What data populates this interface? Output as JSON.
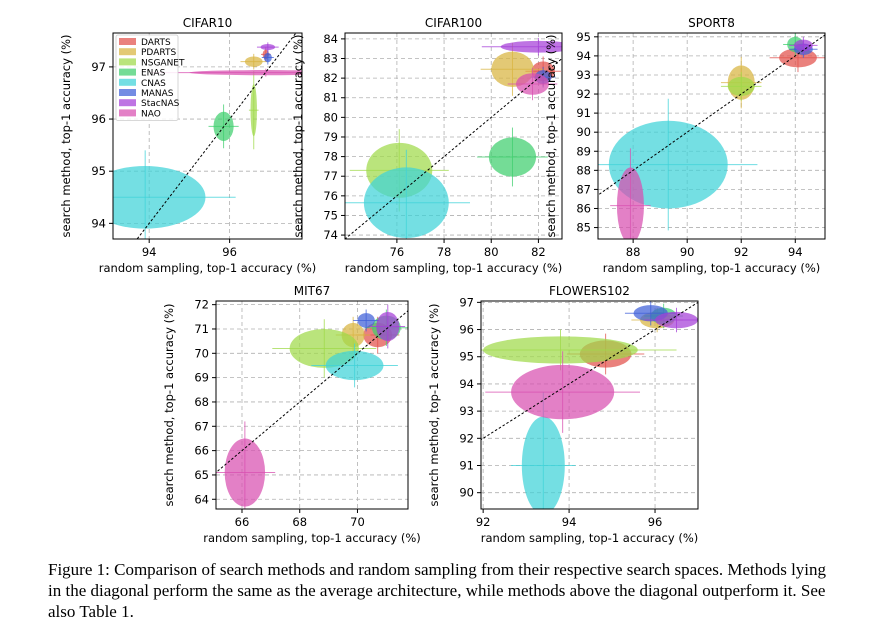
{
  "figure": {
    "caption": "Figure 1: Comparison of search methods and random sampling from their respective search spaces. Methods lying in the diagonal perform the same as the average architecture, while methods above the diagonal outperform it. See also Table 1."
  },
  "legend": [
    {
      "name": "DARTS",
      "color": "#e2504b"
    },
    {
      "name": "PDARTS",
      "color": "#d8b440"
    },
    {
      "name": "NSGANET",
      "color": "#9fd94a"
    },
    {
      "name": "ENAS",
      "color": "#3fcf6e"
    },
    {
      "name": "CNAS",
      "color": "#3fd2d8"
    },
    {
      "name": "MANAS",
      "color": "#3f5fd8"
    },
    {
      "name": "StacNAS",
      "color": "#a53fd8"
    },
    {
      "name": "NAO",
      "color": "#d84fb0"
    }
  ],
  "chart_data": [
    {
      "type": "scatter",
      "title": "CIFAR10",
      "xlabel": "random sampling, top-1 accuracy (%)",
      "ylabel": "search method, top-1 accuracy (%)",
      "xlim": [
        93.1,
        97.8
      ],
      "ylim": [
        93.7,
        97.65
      ],
      "xticks": [
        94,
        96
      ],
      "yticks": [
        94,
        95,
        96,
        97
      ],
      "points": [
        {
          "name": "DARTS",
          "x": 96.9,
          "y": 97.24,
          "xerr": 0.08,
          "yerr": 0.09
        },
        {
          "name": "PDARTS",
          "x": 96.6,
          "y": 97.1,
          "xerr": 0.22,
          "yerr": 0.1
        },
        {
          "name": "NSGANET",
          "x": 96.6,
          "y": 96.17,
          "xerr": 0.08,
          "yerr": 0.5
        },
        {
          "name": "ENAS",
          "x": 95.85,
          "y": 95.86,
          "xerr": 0.25,
          "yerr": 0.28
        },
        {
          "name": "CNAS",
          "x": 93.9,
          "y": 94.5,
          "xerr": 1.5,
          "yerr": 0.6
        },
        {
          "name": "MANAS",
          "x": 96.95,
          "y": 97.18,
          "xerr": 0.1,
          "yerr": 0.09
        },
        {
          "name": "StacNAS",
          "x": 96.95,
          "y": 97.38,
          "xerr": 0.18,
          "yerr": 0.06
        },
        {
          "name": "NAO",
          "x": 96.9,
          "y": 96.89,
          "xerr": 1.9,
          "yerr": 0.05
        }
      ]
    },
    {
      "type": "scatter",
      "title": "CIFAR100",
      "xlabel": "random sampling, top-1 accuracy (%)",
      "ylabel": "search method, top-1 accuracy (%)",
      "xlim": [
        73.8,
        83.0
      ],
      "ylim": [
        73.8,
        84.3
      ],
      "xticks": [
        76,
        78,
        80,
        82
      ],
      "yticks": [
        74,
        75,
        76,
        77,
        78,
        79,
        80,
        81,
        82,
        83,
        84
      ],
      "points": [
        {
          "name": "DARTS",
          "x": 82.2,
          "y": 82.35,
          "xerr": 0.5,
          "yerr": 0.5
        },
        {
          "name": "PDARTS",
          "x": 80.9,
          "y": 82.45,
          "xerr": 0.9,
          "yerr": 0.9
        },
        {
          "name": "NSGANET",
          "x": 76.1,
          "y": 77.3,
          "xerr": 1.4,
          "yerr": 1.4
        },
        {
          "name": "ENAS",
          "x": 80.9,
          "y": 77.98,
          "xerr": 1.0,
          "yerr": 1.0
        },
        {
          "name": "CNAS",
          "x": 76.4,
          "y": 75.65,
          "xerr": 1.8,
          "yerr": 1.8
        },
        {
          "name": "MANAS",
          "x": 82.2,
          "y": 82.05,
          "xerr": 0.35,
          "yerr": 0.35
        },
        {
          "name": "StacNAS",
          "x": 82.0,
          "y": 83.6,
          "xerr": 1.6,
          "yerr": 0.3
        },
        {
          "name": "NAO",
          "x": 81.75,
          "y": 81.7,
          "xerr": 0.7,
          "yerr": 0.55
        }
      ]
    },
    {
      "type": "scatter",
      "title": "SPORT8",
      "xlabel": "random sampling, top-1 accuracy (%)",
      "ylabel": "search method, top-1 accuracy (%)",
      "xlim": [
        86.7,
        95.1
      ],
      "ylim": [
        84.4,
        95.2
      ],
      "xticks": [
        88,
        90,
        92,
        94
      ],
      "yticks": [
        85,
        86,
        87,
        88,
        89,
        90,
        91,
        92,
        93,
        94,
        95
      ],
      "points": [
        {
          "name": "DARTS",
          "x": 94.1,
          "y": 93.9,
          "xerr": 0.7,
          "yerr": 0.5
        },
        {
          "name": "PDARTS",
          "x": 92.0,
          "y": 92.6,
          "xerr": 0.5,
          "yerr": 0.9
        },
        {
          "name": "NSGANET",
          "x": 92.0,
          "y": 92.4,
          "xerr": 0.5,
          "yerr": 0.5
        },
        {
          "name": "ENAS",
          "x": 94.0,
          "y": 94.6,
          "xerr": 0.3,
          "yerr": 0.4
        },
        {
          "name": "CNAS",
          "x": 89.3,
          "y": 88.3,
          "xerr": 2.2,
          "yerr": 2.3
        },
        {
          "name": "MANAS",
          "x": 94.3,
          "y": 94.35,
          "xerr": 0.35,
          "yerr": 0.3
        },
        {
          "name": "StacNAS",
          "x": 94.3,
          "y": 94.55,
          "xerr": 0.35,
          "yerr": 0.3
        },
        {
          "name": "NAO",
          "x": 87.9,
          "y": 86.15,
          "xerr": 0.5,
          "yerr": 2.0
        }
      ]
    },
    {
      "type": "scatter",
      "title": "MIT67",
      "xlabel": "random sampling, top-1 accuracy (%)",
      "ylabel": "search method, top-1 accuracy (%)",
      "xlim": [
        65.1,
        71.75
      ],
      "ylim": [
        63.6,
        72.15
      ],
      "xticks": [
        66,
        68,
        70
      ],
      "yticks": [
        64,
        65,
        66,
        67,
        68,
        69,
        70,
        71,
        72
      ],
      "points": [
        {
          "name": "DARTS",
          "x": 70.7,
          "y": 70.75,
          "xerr": 0.5,
          "yerr": 0.5
        },
        {
          "name": "PDARTS",
          "x": 69.85,
          "y": 70.75,
          "xerr": 0.4,
          "yerr": 0.5
        },
        {
          "name": "NSGANET",
          "x": 68.85,
          "y": 70.2,
          "xerr": 1.2,
          "yerr": 0.8
        },
        {
          "name": "ENAS",
          "x": 71.0,
          "y": 71.05,
          "xerr": 0.5,
          "yerr": 0.5
        },
        {
          "name": "CNAS",
          "x": 69.9,
          "y": 69.5,
          "xerr": 1.0,
          "yerr": 0.6
        },
        {
          "name": "MANAS",
          "x": 70.3,
          "y": 71.35,
          "xerr": 0.3,
          "yerr": 0.3
        },
        {
          "name": "StacNAS",
          "x": 71.05,
          "y": 71.1,
          "xerr": 0.4,
          "yerr": 0.6
        },
        {
          "name": "NAO",
          "x": 66.1,
          "y": 65.1,
          "xerr": 0.7,
          "yerr": 1.4
        }
      ]
    },
    {
      "type": "scatter",
      "title": "FLOWERS102",
      "xlabel": "random sampling, top-1 accuracy (%)",
      "ylabel": "search method, top-1 accuracy (%)",
      "xlim": [
        91.95,
        97.0
      ],
      "ylim": [
        89.4,
        97.05
      ],
      "xticks": [
        92,
        94,
        96
      ],
      "yticks": [
        90,
        91,
        92,
        93,
        94,
        95,
        96,
        97
      ],
      "points": [
        {
          "name": "DARTS",
          "x": 94.85,
          "y": 95.1,
          "xerr": 0.6,
          "yerr": 0.5
        },
        {
          "name": "PDARTS",
          "x": 96.05,
          "y": 96.35,
          "xerr": 0.4,
          "yerr": 0.3
        },
        {
          "name": "NSGANET",
          "x": 93.8,
          "y": 95.25,
          "xerr": 1.8,
          "yerr": 0.5
        },
        {
          "name": "ENAS",
          "x": 96.2,
          "y": 96.5,
          "xerr": 0.3,
          "yerr": 0.3
        },
        {
          "name": "CNAS",
          "x": 93.4,
          "y": 91.0,
          "xerr": 0.5,
          "yerr": 1.8
        },
        {
          "name": "MANAS",
          "x": 95.9,
          "y": 96.6,
          "xerr": 0.4,
          "yerr": 0.3
        },
        {
          "name": "StacNAS",
          "x": 96.5,
          "y": 96.35,
          "xerr": 0.5,
          "yerr": 0.3
        },
        {
          "name": "NAO",
          "x": 93.85,
          "y": 93.7,
          "xerr": 1.2,
          "yerr": 1.0
        }
      ]
    }
  ]
}
